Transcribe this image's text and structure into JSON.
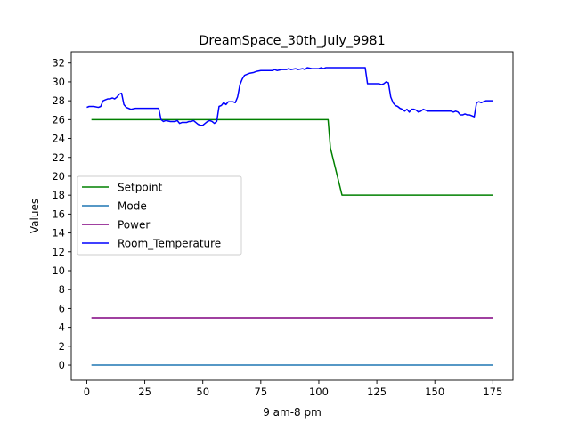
{
  "chart_data": {
    "type": "line",
    "title": "DreamSpace_30th_July_9981",
    "xlabel": "9 am-8 pm",
    "ylabel": "Values",
    "xlim": [
      -6.7,
      183.7
    ],
    "ylim": [
      -1.6,
      33.2
    ],
    "xticks": [
      0,
      25,
      50,
      75,
      100,
      125,
      150,
      175
    ],
    "yticks": [
      0,
      2,
      4,
      6,
      8,
      10,
      12,
      14,
      16,
      18,
      20,
      22,
      24,
      26,
      28,
      30,
      32
    ],
    "grid": false,
    "legend_position": "center-left",
    "series": [
      {
        "name": "Setpoint",
        "color": "#008000",
        "points": [
          [
            2,
            26
          ],
          [
            104,
            26
          ],
          [
            105,
            23
          ],
          [
            110,
            18
          ],
          [
            175,
            18
          ]
        ]
      },
      {
        "name": "Mode",
        "color": "#1f77b4",
        "points": [
          [
            2,
            0
          ],
          [
            175,
            0
          ]
        ]
      },
      {
        "name": "Power",
        "color": "#800080",
        "points": [
          [
            2,
            5
          ],
          [
            175,
            5
          ]
        ]
      },
      {
        "name": "Room_Temperature",
        "color": "#0000ff",
        "points": [
          [
            0,
            27.3
          ],
          [
            1,
            27.4
          ],
          [
            3,
            27.4
          ],
          [
            5,
            27.3
          ],
          [
            6,
            27.4
          ],
          [
            7,
            28.0
          ],
          [
            8,
            28.1
          ],
          [
            9,
            28.2
          ],
          [
            10,
            28.2
          ],
          [
            11,
            28.3
          ],
          [
            12,
            28.2
          ],
          [
            13,
            28.4
          ],
          [
            14,
            28.7
          ],
          [
            15,
            28.8
          ],
          [
            16,
            27.6
          ],
          [
            17,
            27.3
          ],
          [
            18,
            27.2
          ],
          [
            19,
            27.1
          ],
          [
            21,
            27.2
          ],
          [
            25,
            27.2
          ],
          [
            28,
            27.2
          ],
          [
            31,
            27.2
          ],
          [
            32,
            26.0
          ],
          [
            33,
            25.8
          ],
          [
            34,
            25.9
          ],
          [
            36,
            25.8
          ],
          [
            38,
            25.8
          ],
          [
            39,
            25.9
          ],
          [
            40,
            25.6
          ],
          [
            41,
            25.7
          ],
          [
            43,
            25.7
          ],
          [
            44,
            25.8
          ],
          [
            45,
            25.8
          ],
          [
            46,
            25.9
          ],
          [
            47,
            25.7
          ],
          [
            48,
            25.5
          ],
          [
            49,
            25.4
          ],
          [
            50,
            25.4
          ],
          [
            51,
            25.6
          ],
          [
            52,
            25.8
          ],
          [
            53,
            25.9
          ],
          [
            54,
            25.8
          ],
          [
            55,
            25.6
          ],
          [
            56,
            25.8
          ],
          [
            57,
            27.4
          ],
          [
            58,
            27.5
          ],
          [
            59,
            27.8
          ],
          [
            60,
            27.6
          ],
          [
            61,
            27.9
          ],
          [
            63,
            27.9
          ],
          [
            64,
            27.8
          ],
          [
            65,
            28.4
          ],
          [
            66,
            29.7
          ],
          [
            67,
            30.3
          ],
          [
            68,
            30.7
          ],
          [
            70,
            30.9
          ],
          [
            72,
            31.0
          ],
          [
            73,
            31.1
          ],
          [
            75,
            31.2
          ],
          [
            78,
            31.2
          ],
          [
            80,
            31.2
          ],
          [
            81,
            31.3
          ],
          [
            82,
            31.2
          ],
          [
            84,
            31.3
          ],
          [
            86,
            31.3
          ],
          [
            87,
            31.4
          ],
          [
            88,
            31.3
          ],
          [
            90,
            31.4
          ],
          [
            91,
            31.3
          ],
          [
            93,
            31.4
          ],
          [
            94,
            31.3
          ],
          [
            95,
            31.5
          ],
          [
            97,
            31.4
          ],
          [
            99,
            31.4
          ],
          [
            100,
            31.4
          ],
          [
            101,
            31.5
          ],
          [
            102,
            31.4
          ],
          [
            103,
            31.5
          ],
          [
            110,
            31.5
          ],
          [
            115,
            31.5
          ],
          [
            120,
            31.5
          ],
          [
            121,
            29.8
          ],
          [
            123,
            29.8
          ],
          [
            126,
            29.8
          ],
          [
            127,
            29.7
          ],
          [
            128,
            29.8
          ],
          [
            129,
            30.0
          ],
          [
            130,
            29.9
          ],
          [
            131,
            28.4
          ],
          [
            132,
            27.8
          ],
          [
            133,
            27.5
          ],
          [
            134,
            27.4
          ],
          [
            135,
            27.2
          ],
          [
            136,
            27.1
          ],
          [
            137,
            26.9
          ],
          [
            138,
            27.1
          ],
          [
            139,
            26.8
          ],
          [
            140,
            27.1
          ],
          [
            141,
            27.1
          ],
          [
            142,
            27.0
          ],
          [
            143,
            26.8
          ],
          [
            144,
            26.9
          ],
          [
            145,
            27.1
          ],
          [
            146,
            27.0
          ],
          [
            147,
            26.9
          ],
          [
            150,
            26.9
          ],
          [
            155,
            26.9
          ],
          [
            157,
            26.9
          ],
          [
            158,
            26.8
          ],
          [
            159,
            26.9
          ],
          [
            160,
            26.8
          ],
          [
            161,
            26.5
          ],
          [
            162,
            26.5
          ],
          [
            163,
            26.6
          ],
          [
            164,
            26.5
          ],
          [
            165,
            26.5
          ],
          [
            166,
            26.4
          ],
          [
            167,
            26.3
          ],
          [
            168,
            27.8
          ],
          [
            169,
            27.9
          ],
          [
            170,
            27.8
          ],
          [
            171,
            27.9
          ],
          [
            172,
            28.0
          ],
          [
            175,
            28.0
          ]
        ]
      }
    ]
  }
}
